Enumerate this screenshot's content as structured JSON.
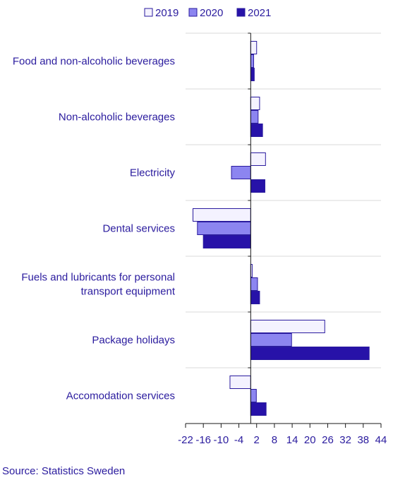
{
  "colors": {
    "text": "#2a1b9e",
    "grid": "#d8d8d8",
    "axis": "#1a1a1a",
    "series_2019": "#f4f2ff",
    "series_2020": "#8c85f0",
    "series_2021": "#2712a8",
    "bar_stroke": "#2a1b9e"
  },
  "source": "Source: Statistics Sweden",
  "chart_data": {
    "type": "bar",
    "orientation": "horizontal",
    "categories": [
      [
        "Food and non-alcoholic beverages"
      ],
      [
        "Non-alcoholic beverages"
      ],
      [
        "Electricity"
      ],
      [
        "Dental services"
      ],
      [
        "Fuels and lubricants for personal",
        "transport equipment"
      ],
      [
        "Package holidays"
      ],
      [
        "Accomodation services"
      ]
    ],
    "series": [
      {
        "name": "2019",
        "values": [
          2.0,
          3.0,
          5.0,
          -19.5,
          0.5,
          25.0,
          -7.0
        ]
      },
      {
        "name": "2020",
        "values": [
          1.0,
          2.5,
          -6.5,
          -18.0,
          2.3,
          13.8,
          1.9
        ]
      },
      {
        "name": "2021",
        "values": [
          1.2,
          4.0,
          4.8,
          -16.0,
          3.0,
          40.0,
          5.2
        ]
      }
    ],
    "xlim": [
      -22,
      44
    ],
    "xticks": [
      "-22",
      "-16",
      "-10",
      "-4",
      "2",
      "8",
      "14",
      "20",
      "26",
      "32",
      "38",
      "44"
    ],
    "grid": true,
    "legend": "top-right"
  }
}
